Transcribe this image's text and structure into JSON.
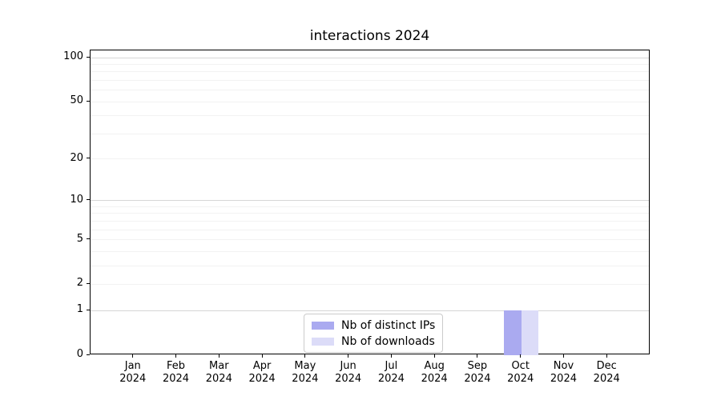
{
  "chart_data": {
    "type": "bar",
    "title": "interactions 2024",
    "categories": [
      "Jan",
      "Feb",
      "Mar",
      "Apr",
      "May",
      "Jun",
      "Jul",
      "Aug",
      "Sep",
      "Oct",
      "Nov",
      "Dec"
    ],
    "year_label": "2024",
    "series": [
      {
        "name": "Nb of distinct IPs",
        "color": "#aaaaf0",
        "values": [
          0,
          0,
          0,
          0,
          0,
          0,
          0,
          0,
          0,
          1,
          0,
          0
        ]
      },
      {
        "name": "Nb of downloads",
        "color": "#dcdcf8",
        "values": [
          0,
          0,
          0,
          0,
          0,
          0,
          0,
          0,
          0,
          1,
          0,
          0
        ]
      }
    ],
    "y_ticks": [
      0,
      1,
      2,
      5,
      10,
      20,
      50,
      100
    ],
    "y_scale": "log10(1+x)",
    "ylim": [
      0,
      112
    ],
    "xlabel": "",
    "ylabel": "",
    "grid": {
      "major_values": [
        1,
        10,
        100
      ],
      "minor_values": [
        2,
        3,
        4,
        5,
        6,
        7,
        8,
        9,
        20,
        30,
        40,
        50,
        60,
        70,
        80,
        90
      ]
    },
    "legend": {
      "position": "bottom-center",
      "entries": [
        "Nb of distinct IPs",
        "Nb of downloads"
      ]
    }
  },
  "colors": {
    "axis": "#000000",
    "grid_major": "#d6d6d6",
    "grid_minor": "#f2f2f2",
    "background": "#ffffff"
  }
}
